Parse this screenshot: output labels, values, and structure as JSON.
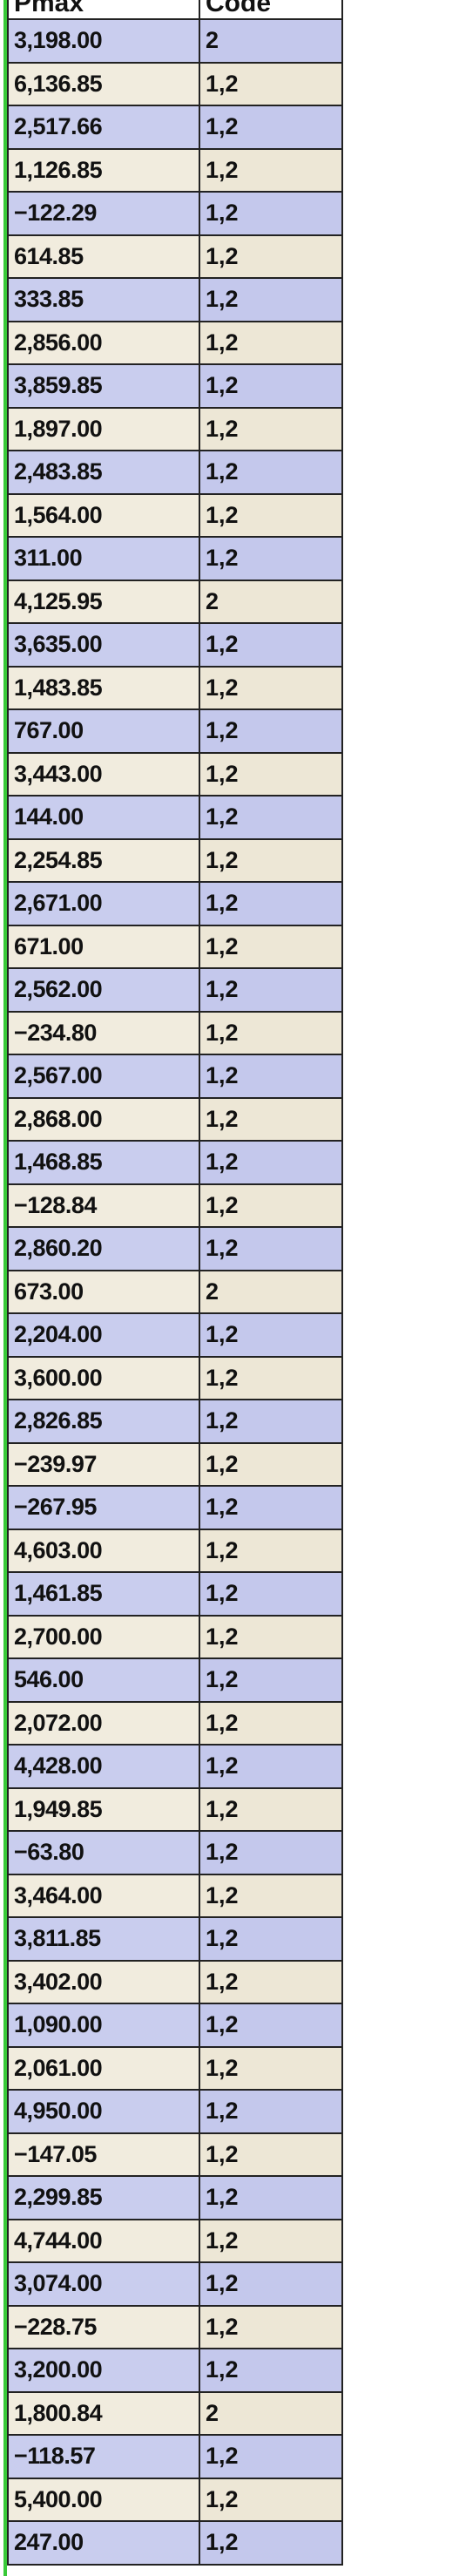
{
  "table": {
    "headers": [
      "Pmax",
      "Code"
    ],
    "rows": [
      [
        "3,198.00",
        "2"
      ],
      [
        "6,136.85",
        "1,2"
      ],
      [
        "2,517.66",
        "1,2"
      ],
      [
        "1,126.85",
        "1,2"
      ],
      [
        "−122.29",
        "1,2"
      ],
      [
        "614.85",
        "1,2"
      ],
      [
        "333.85",
        "1,2"
      ],
      [
        "2,856.00",
        "1,2"
      ],
      [
        "3,859.85",
        "1,2"
      ],
      [
        "1,897.00",
        "1,2"
      ],
      [
        "2,483.85",
        "1,2"
      ],
      [
        "1,564.00",
        "1,2"
      ],
      [
        "311.00",
        "1,2"
      ],
      [
        "4,125.95",
        "2"
      ],
      [
        "3,635.00",
        "1,2"
      ],
      [
        "1,483.85",
        "1,2"
      ],
      [
        "767.00",
        "1,2"
      ],
      [
        "3,443.00",
        "1,2"
      ],
      [
        "144.00",
        "1,2"
      ],
      [
        "2,254.85",
        "1,2"
      ],
      [
        "2,671.00",
        "1,2"
      ],
      [
        "671.00",
        "1,2"
      ],
      [
        "2,562.00",
        "1,2"
      ],
      [
        "−234.80",
        "1,2"
      ],
      [
        "2,567.00",
        "1,2"
      ],
      [
        "2,868.00",
        "1,2"
      ],
      [
        "1,468.85",
        "1,2"
      ],
      [
        "−128.84",
        "1,2"
      ],
      [
        "2,860.20",
        "1,2"
      ],
      [
        "673.00",
        "2"
      ],
      [
        "2,204.00",
        "1,2"
      ],
      [
        "3,600.00",
        "1,2"
      ],
      [
        "2,826.85",
        "1,2"
      ],
      [
        "−239.97",
        "1,2"
      ],
      [
        "−267.95",
        "1,2"
      ],
      [
        "4,603.00",
        "1,2"
      ],
      [
        "1,461.85",
        "1,2"
      ],
      [
        "2,700.00",
        "1,2"
      ],
      [
        "546.00",
        "1,2"
      ],
      [
        "2,072.00",
        "1,2"
      ],
      [
        "4,428.00",
        "1,2"
      ],
      [
        "1,949.85",
        "1,2"
      ],
      [
        "−63.80",
        "1,2"
      ],
      [
        "3,464.00",
        "1,2"
      ],
      [
        "3,811.85",
        "1,2"
      ],
      [
        "3,402.00",
        "1,2"
      ],
      [
        "1,090.00",
        "1,2"
      ],
      [
        "2,061.00",
        "1,2"
      ],
      [
        "4,950.00",
        "1,2"
      ],
      [
        "−147.05",
        "1,2"
      ],
      [
        "2,299.85",
        "1,2"
      ],
      [
        "4,744.00",
        "1,2"
      ],
      [
        "3,074.00",
        "1,2"
      ],
      [
        "−228.75",
        "1,2"
      ],
      [
        "3,200.00",
        "1,2"
      ],
      [
        "1,800.84",
        "2"
      ],
      [
        "−118.57",
        "1,2"
      ],
      [
        "5,400.00",
        "1,2"
      ],
      [
        "247.00",
        "1,2"
      ]
    ]
  },
  "colors": {
    "row_blue": "#c9cdee",
    "row_cream": "#f1ecde",
    "margin_rule": "#39c939",
    "grid_line": "#222222"
  }
}
